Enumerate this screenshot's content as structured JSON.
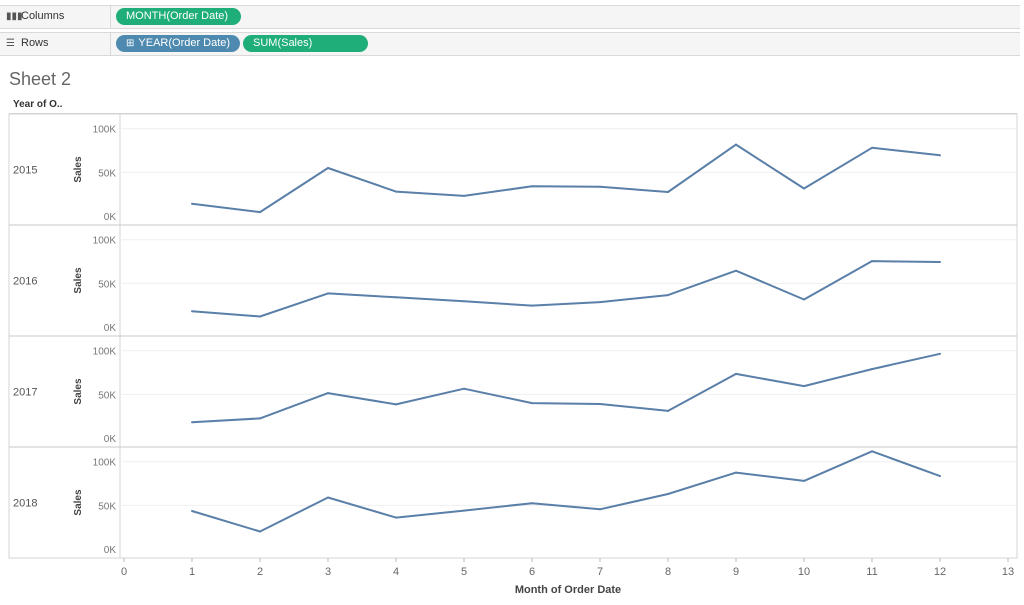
{
  "shelves": {
    "columns": {
      "label": "Columns",
      "icon": "columns-icon",
      "pills": [
        "MONTH(Order Date)"
      ]
    },
    "rows": {
      "label": "Rows",
      "icon": "rows-icon",
      "pills": [
        "YEAR(Order Date)",
        "SUM(Sales)"
      ]
    }
  },
  "sheet_title": "Sheet 2",
  "row_header": "Year of O..",
  "colors": {
    "line": "#5a7fa8",
    "pill_green": "#1fad7a",
    "pill_blue": "#4e8ab0"
  },
  "chart_data": {
    "type": "line",
    "xlabel": "Month of Order Date",
    "ylabel": "Sales",
    "x_ticks": [
      "0",
      "1",
      "2",
      "3",
      "4",
      "5",
      "6",
      "7",
      "8",
      "9",
      "10",
      "11",
      "12",
      "13"
    ],
    "y_ticks": [
      "0K",
      "50K",
      "100K"
    ],
    "xlim": [
      0,
      13
    ],
    "ylim": [
      0,
      110000
    ],
    "grid": true,
    "categories": [
      1,
      2,
      3,
      4,
      5,
      6,
      7,
      8,
      9,
      10,
      11,
      12
    ],
    "series": [
      {
        "panel": "2015",
        "values": [
          14000,
          4500,
          55000,
          28000,
          23000,
          34000,
          33500,
          27500,
          81800,
          31500,
          78200,
          69500
        ]
      },
      {
        "panel": "2016",
        "values": [
          18000,
          12000,
          38500,
          34000,
          29500,
          24500,
          28500,
          36500,
          64500,
          31500,
          75500,
          74500
        ]
      },
      {
        "panel": "2017",
        "values": [
          18000,
          22500,
          51500,
          38500,
          56500,
          40000,
          39000,
          31000,
          73500,
          59500,
          79000,
          96500
        ]
      },
      {
        "panel": "2018",
        "values": [
          43500,
          20000,
          59000,
          36000,
          44000,
          52500,
          45500,
          63000,
          87500,
          78000,
          112000,
          83500
        ]
      }
    ]
  }
}
